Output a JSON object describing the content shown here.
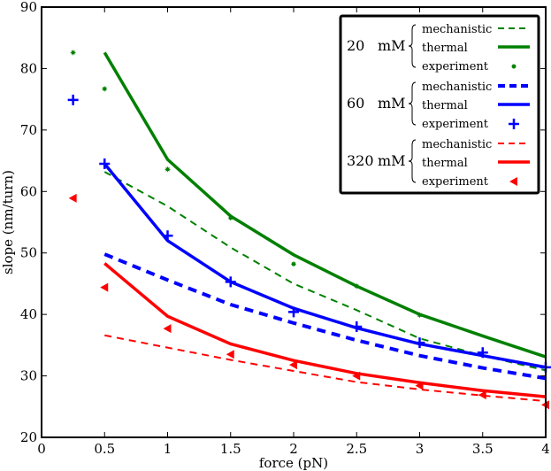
{
  "chart_data": {
    "type": "line",
    "xlabel": "force (pN)",
    "ylabel": "slope (nm/turn)",
    "xlim": [
      0,
      4
    ],
    "ylim": [
      20,
      90
    ],
    "xticks": [
      "0",
      "0.5",
      "1",
      "1.5",
      "2",
      "2.5",
      "3",
      "3.5",
      "4"
    ],
    "yticks": [
      "20",
      "30",
      "40",
      "50",
      "60",
      "70",
      "80",
      "90"
    ],
    "grid": false,
    "legend_position": "top-right",
    "groups": [
      {
        "label": "20",
        "unit": "mM",
        "color": "#008000",
        "series": [
          {
            "name": "mechanistic",
            "style": "dashed",
            "x": [
              0.5,
              1,
              1.5,
              2,
              2.5,
              3,
              3.5,
              4
            ],
            "y": [
              63.2,
              57.6,
              50.9,
              45.0,
              40.7,
              36.1,
              33.3,
              30.9
            ]
          },
          {
            "name": "thermal",
            "style": "solid",
            "x": [
              0.5,
              1,
              1.5,
              2,
              2.5,
              3,
              3.5,
              4
            ],
            "y": [
              82.6,
              65.2,
              56.0,
              49.7,
              44.6,
              40.0,
              36.5,
              33.1
            ]
          },
          {
            "name": "experiment",
            "style": "asterisk",
            "x": [
              0.25,
              0.5,
              1,
              1.5,
              2,
              2.5,
              3
            ],
            "y": [
              82.6,
              76.7,
              63.6,
              55.7,
              48.2,
              44.6,
              39.9
            ]
          }
        ]
      },
      {
        "label": "60",
        "unit": "mM",
        "color": "#0000ff",
        "series": [
          {
            "name": "mechanistic",
            "style": "dashed",
            "x": [
              0.5,
              1,
              1.5,
              2,
              2.5,
              3,
              3.5,
              4
            ],
            "y": [
              49.8,
              45.6,
              41.6,
              38.6,
              35.8,
              33.3,
              31.3,
              29.6
            ]
          },
          {
            "name": "thermal",
            "style": "solid",
            "x": [
              0.5,
              1,
              1.5,
              2,
              2.5,
              3,
              3.5,
              4
            ],
            "y": [
              64.5,
              52.0,
              45.3,
              41.0,
              37.8,
              35.2,
              33.3,
              31.4
            ]
          },
          {
            "name": "experiment",
            "style": "plus",
            "x": [
              0.25,
              0.5,
              1,
              1.5,
              2,
              2.5,
              3,
              3.5,
              4
            ],
            "y": [
              74.9,
              64.5,
              52.8,
              45.3,
              40.4,
              38.0,
              35.4,
              33.8,
              31.4
            ]
          }
        ]
      },
      {
        "label": "320",
        "unit": "mM",
        "color": "#ff0000",
        "series": [
          {
            "name": "mechanistic",
            "style": "dashed",
            "x": [
              0.5,
              1,
              1.5,
              2,
              2.5,
              3,
              3.5,
              4
            ],
            "y": [
              36.6,
              34.6,
              32.6,
              30.8,
              29.0,
              27.8,
              26.8,
              25.9
            ]
          },
          {
            "name": "thermal",
            "style": "solid",
            "x": [
              0.5,
              1,
              1.5,
              2,
              2.5,
              3,
              3.5,
              4
            ],
            "y": [
              48.3,
              39.7,
              35.2,
              32.5,
              30.4,
              28.9,
              27.6,
              26.6
            ]
          },
          {
            "name": "experiment",
            "style": "triangle-left",
            "x": [
              0.25,
              0.5,
              1,
              1.5,
              2,
              2.5,
              3,
              3.5,
              4
            ],
            "y": [
              58.9,
              44.4,
              37.7,
              33.5,
              31.8,
              30.0,
              28.4,
              26.9,
              25.3
            ]
          }
        ]
      }
    ]
  }
}
